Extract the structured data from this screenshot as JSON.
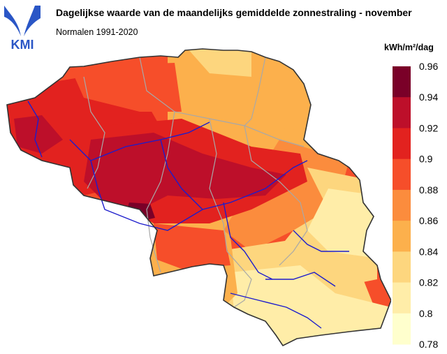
{
  "header": {
    "title": "Dagelijkse waarde van de maandelijks gemiddelde zonnestraling - november",
    "subtitle": "Normalen 1991-2020",
    "logo_text": "KMI"
  },
  "legend": {
    "unit": "kWh/m²/dag",
    "ticks": [
      "0.96",
      "0.94",
      "0.92",
      "0.9",
      "0.88",
      "0.86",
      "0.84",
      "0.82",
      "0.8",
      "0.78"
    ],
    "colors": [
      "#7a0028",
      "#bd0f2a",
      "#e2221f",
      "#f64e2a",
      "#fb8c3d",
      "#fcb04c",
      "#fdd67e",
      "#ffeda8",
      "#ffffcd"
    ]
  },
  "map": {
    "region": "Belgium",
    "river_color": "#1d1dcc",
    "boundary_color": "#a8a8a8",
    "outline_color": "#333333"
  }
}
